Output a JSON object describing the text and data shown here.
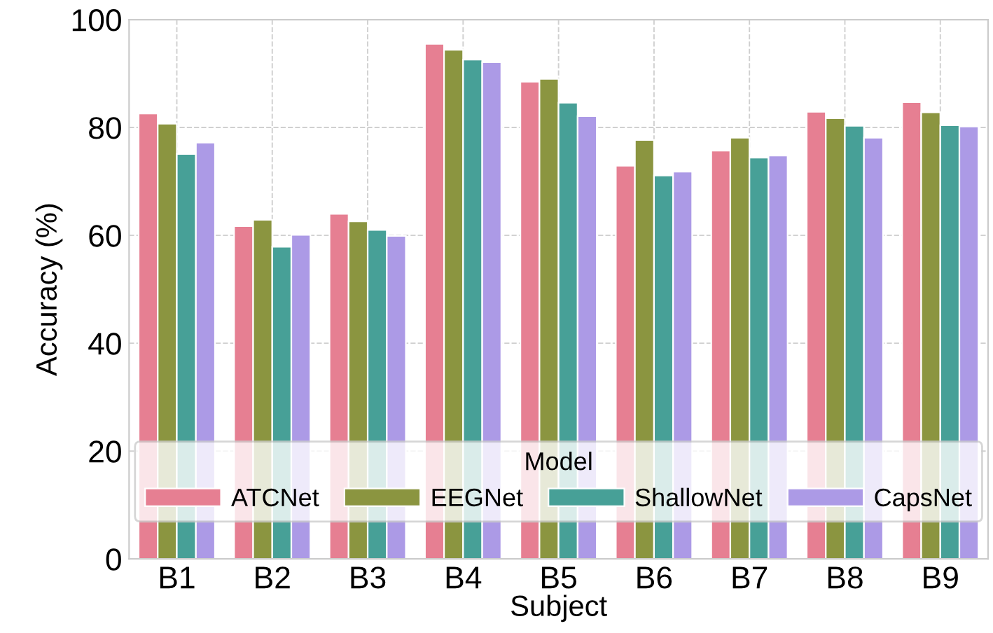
{
  "chart_data": {
    "type": "bar",
    "xlabel": "Subject",
    "ylabel": "Accuracy (%)",
    "legend_title": "Model",
    "categories": [
      "B1",
      "B2",
      "B3",
      "B4",
      "B5",
      "B6",
      "B7",
      "B8",
      "B9"
    ],
    "series": [
      {
        "name": "ATCNet",
        "color": "#e67f92",
        "values": [
          82.6,
          61.7,
          64.0,
          95.5,
          88.5,
          72.9,
          75.7,
          82.9,
          84.7
        ]
      },
      {
        "name": "EEGNet",
        "color": "#8b9540",
        "values": [
          80.7,
          62.9,
          62.6,
          94.4,
          89.0,
          77.7,
          78.1,
          81.7,
          82.8
        ]
      },
      {
        "name": "ShallowNet",
        "color": "#47a097",
        "values": [
          75.1,
          57.9,
          61.0,
          92.6,
          84.6,
          71.1,
          74.4,
          80.3,
          80.4
        ]
      },
      {
        "name": "CapsNet",
        "color": "#ac9ae6",
        "values": [
          77.2,
          60.1,
          59.9,
          92.1,
          82.1,
          71.8,
          74.8,
          78.1,
          80.2
        ]
      }
    ],
    "ylim": [
      0,
      100
    ],
    "yticks": [
      0,
      20,
      40,
      60,
      80,
      100
    ],
    "grid": true,
    "legend": "bottom"
  }
}
